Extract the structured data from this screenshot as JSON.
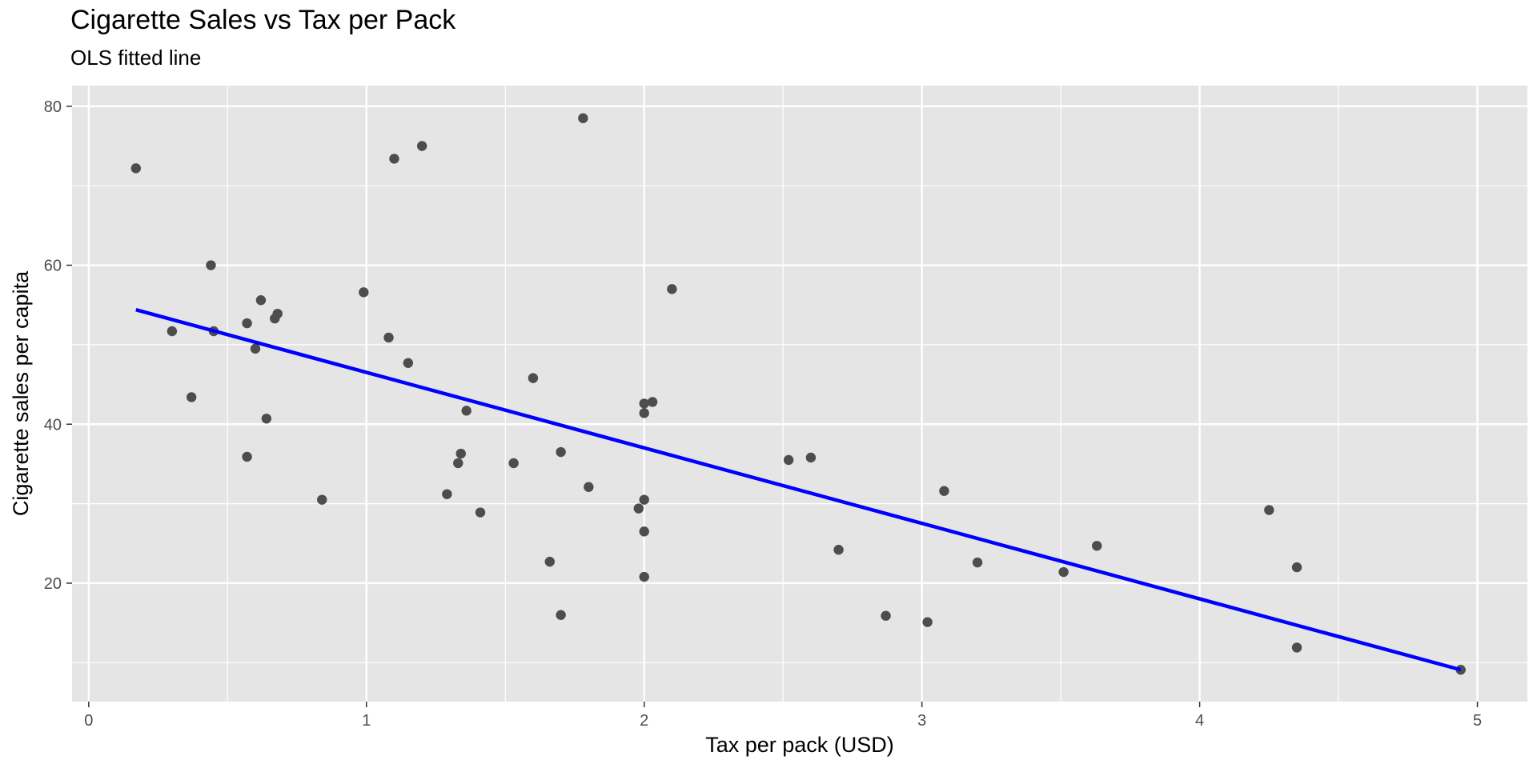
{
  "chart_data": {
    "type": "scatter",
    "title": "Cigarette Sales vs Tax per Pack",
    "subtitle": "OLS fitted line",
    "xlabel": "Tax per pack (USD)",
    "ylabel": "Cigarette sales per capita",
    "xlim": [
      -0.06,
      5.18
    ],
    "ylim": [
      5.1,
      82.6
    ],
    "x_ticks": [
      0,
      1,
      2,
      3,
      4,
      5
    ],
    "y_ticks": [
      20,
      40,
      60,
      80
    ],
    "grid": true,
    "colors": {
      "panel_background": "#e5e5e5",
      "grid": "#ffffff",
      "points": "#4d4d4d",
      "fit_line": "#0000ff"
    },
    "series": [
      {
        "type": "scatter",
        "points": [
          [
            0.17,
            72.2
          ],
          [
            0.3,
            51.7
          ],
          [
            0.37,
            43.4
          ],
          [
            0.44,
            60.0
          ],
          [
            0.45,
            51.7
          ],
          [
            0.57,
            52.7
          ],
          [
            0.57,
            35.9
          ],
          [
            0.6,
            49.5
          ],
          [
            0.62,
            55.6
          ],
          [
            0.64,
            40.7
          ],
          [
            0.67,
            53.3
          ],
          [
            0.68,
            53.9
          ],
          [
            0.84,
            30.5
          ],
          [
            0.99,
            56.6
          ],
          [
            1.08,
            50.9
          ],
          [
            1.1,
            73.4
          ],
          [
            1.15,
            47.7
          ],
          [
            1.2,
            75.0
          ],
          [
            1.29,
            31.2
          ],
          [
            1.33,
            35.1
          ],
          [
            1.34,
            36.3
          ],
          [
            1.36,
            41.7
          ],
          [
            1.41,
            28.9
          ],
          [
            1.53,
            35.1
          ],
          [
            1.6,
            45.8
          ],
          [
            1.66,
            22.7
          ],
          [
            1.7,
            36.5
          ],
          [
            1.7,
            16.0
          ],
          [
            1.78,
            78.5
          ],
          [
            1.8,
            32.1
          ],
          [
            1.98,
            29.4
          ],
          [
            2.0,
            42.6
          ],
          [
            2.0,
            41.4
          ],
          [
            2.0,
            30.5
          ],
          [
            2.0,
            26.5
          ],
          [
            2.0,
            20.8
          ],
          [
            2.03,
            42.8
          ],
          [
            2.1,
            57.0
          ],
          [
            2.52,
            35.5
          ],
          [
            2.6,
            35.8
          ],
          [
            2.7,
            24.2
          ],
          [
            2.87,
            15.9
          ],
          [
            3.02,
            15.1
          ],
          [
            3.08,
            31.6
          ],
          [
            3.2,
            22.6
          ],
          [
            3.51,
            21.4
          ],
          [
            3.63,
            24.7
          ],
          [
            4.25,
            29.2
          ],
          [
            4.35,
            22.0
          ],
          [
            4.35,
            11.9
          ],
          [
            4.94,
            9.1
          ]
        ]
      },
      {
        "type": "line",
        "points": [
          [
            0.17,
            54.4
          ],
          [
            4.94,
            9.1
          ]
        ]
      }
    ]
  }
}
